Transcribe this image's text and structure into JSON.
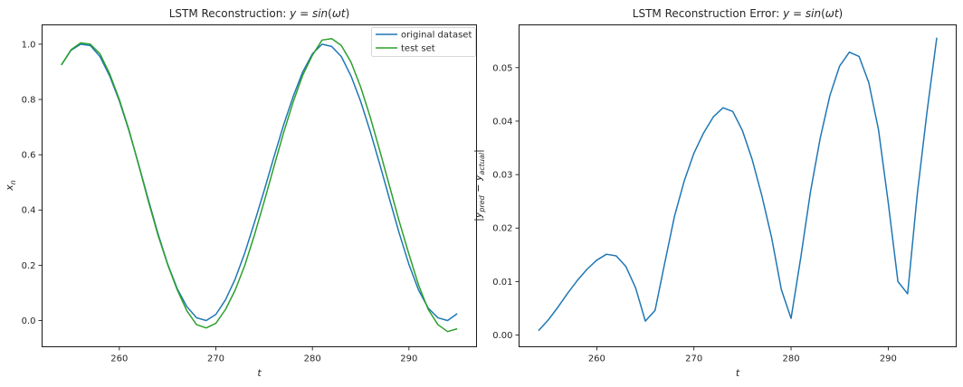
{
  "chart_data": [
    {
      "type": "line",
      "title": "LSTM Reconstruction: y = sin(ωt)",
      "xlabel": "t",
      "ylabel": "x_n",
      "xlim": [
        252.0,
        297.0
      ],
      "ylim": [
        -0.095,
        1.07
      ],
      "xticks": [
        260,
        270,
        280,
        290
      ],
      "yticks": [
        0.0,
        0.2,
        0.4,
        0.6,
        0.8,
        1.0
      ],
      "xtick_labels": [
        "260",
        "270",
        "280",
        "290"
      ],
      "ytick_labels": [
        "0.0",
        "0.2",
        "0.4",
        "0.6",
        "0.8",
        "1.0"
      ],
      "grid": false,
      "legend_position": "top-right",
      "series": [
        {
          "name": "original dataset",
          "color": "#1f77b4",
          "x": [
            254,
            255,
            256,
            257,
            258,
            259,
            260,
            261,
            262,
            263,
            264,
            265,
            266,
            267,
            268,
            269,
            270,
            271,
            272,
            273,
            274,
            275,
            276,
            277,
            278,
            279,
            280,
            281,
            282,
            283,
            284,
            285,
            286,
            287,
            288,
            289,
            290,
            291,
            292,
            293,
            294,
            295
          ],
          "y": [
            0.925,
            0.978,
            1.0,
            0.995,
            0.955,
            0.885,
            0.795,
            0.687,
            0.565,
            0.438,
            0.315,
            0.205,
            0.115,
            0.05,
            0.01,
            0.0,
            0.022,
            0.075,
            0.15,
            0.245,
            0.355,
            0.47,
            0.59,
            0.706,
            0.81,
            0.9,
            0.965,
            1.0,
            0.992,
            0.955,
            0.885,
            0.793,
            0.683,
            0.563,
            0.438,
            0.315,
            0.203,
            0.11,
            0.045,
            0.01,
            0.0,
            0.025
          ]
        },
        {
          "name": "test set",
          "color": "#2ca02c",
          "x": [
            254,
            255,
            256,
            257,
            258,
            259,
            260,
            261,
            262,
            263,
            264,
            265,
            266,
            267,
            268,
            269,
            270,
            271,
            272,
            273,
            274,
            275,
            276,
            277,
            278,
            279,
            280,
            281,
            282,
            283,
            284,
            285,
            286,
            287,
            288,
            289,
            290,
            291,
            292,
            293,
            294,
            295
          ],
          "y": [
            0.925,
            0.98,
            1.005,
            1.0,
            0.965,
            0.893,
            0.8,
            0.69,
            0.563,
            0.433,
            0.31,
            0.203,
            0.111,
            0.035,
            -0.015,
            -0.027,
            -0.01,
            0.04,
            0.11,
            0.2,
            0.31,
            0.43,
            0.555,
            0.678,
            0.79,
            0.888,
            0.96,
            1.015,
            1.02,
            0.995,
            0.935,
            0.845,
            0.735,
            0.612,
            0.485,
            0.358,
            0.24,
            0.128,
            0.04,
            -0.015,
            -0.04,
            -0.03
          ]
        }
      ]
    },
    {
      "type": "line",
      "title": "LSTM Reconstruction Error: y = sin(ωt)",
      "xlabel": "t",
      "ylabel": "|y_pred − y_actual|",
      "xlim": [
        252.0,
        297.0
      ],
      "ylim": [
        -0.0022,
        0.058
      ],
      "xticks": [
        260,
        270,
        280,
        290
      ],
      "yticks": [
        0.0,
        0.01,
        0.02,
        0.03,
        0.04,
        0.05
      ],
      "xtick_labels": [
        "260",
        "270",
        "280",
        "290"
      ],
      "ytick_labels": [
        "0.00",
        "0.01",
        "0.02",
        "0.03",
        "0.04",
        "0.05"
      ],
      "grid": false,
      "series": [
        {
          "color": "#1f77b4",
          "x": [
            254,
            255,
            256,
            257,
            258,
            259,
            260,
            261,
            262,
            263,
            264,
            265,
            266,
            267,
            268,
            269,
            270,
            271,
            272,
            273,
            274,
            275,
            276,
            277,
            278,
            279,
            280,
            281,
            282,
            283,
            284,
            285,
            286,
            287,
            288,
            289,
            290,
            291,
            292,
            293,
            294,
            295
          ],
          "y": [
            0.0008,
            0.0028,
            0.0052,
            0.0078,
            0.0102,
            0.0123,
            0.014,
            0.0151,
            0.0148,
            0.0128,
            0.0088,
            0.0026,
            0.0046,
            0.0135,
            0.0222,
            0.0288,
            0.034,
            0.0378,
            0.0408,
            0.0425,
            0.0418,
            0.0382,
            0.0328,
            0.026,
            0.0182,
            0.0085,
            0.0031,
            0.0145,
            0.0268,
            0.0368,
            0.0448,
            0.0503,
            0.0529,
            0.0521,
            0.0472,
            0.0384,
            0.0248,
            0.01,
            0.0077,
            0.0265,
            0.0418,
            0.0556
          ]
        }
      ]
    }
  ]
}
